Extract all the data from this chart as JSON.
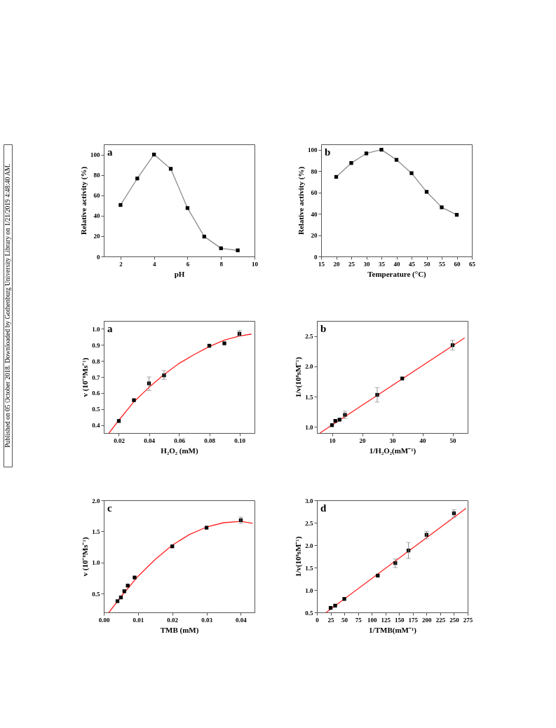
{
  "chart_data": [
    {
      "type": "line",
      "title": "a",
      "xlabel": "pH",
      "ylabel": "Relative activity (%)",
      "annotations": [
        "Published on 05 October 2018. Downloaded by Gothenburg University Library on 1/21/2019 4:48:40 AM."
      ],
      "xlim": [
        1,
        10
      ],
      "xticks": [
        2,
        4,
        6,
        8,
        10
      ],
      "ylim": [
        0,
        110
      ],
      "yticks": [
        0,
        20,
        40,
        60,
        80,
        100
      ],
      "grid": false,
      "marker": "square",
      "line_style": "solid",
      "series": [
        {
          "color": "#8c8c8c",
          "colors": [
            "#000000",
            "#000000",
            "#000000",
            "#000000",
            "#000000",
            "#000000",
            "#000000",
            "#000000"
          ],
          "x": [
            2,
            3,
            4,
            5,
            6,
            7,
            8,
            9
          ],
          "values": [
            50.5,
            76.5,
            100,
            86,
            47.5,
            19.5,
            8,
            6
          ]
        }
      ]
    },
    {
      "type": "line",
      "title": "b",
      "xlabel": "Temperature (°C)",
      "ylabel": "Relative activity (%)",
      "xlim": [
        15,
        65
      ],
      "xticks": [
        15,
        20,
        25,
        30,
        35,
        40,
        45,
        50,
        55,
        60,
        65
      ],
      "ylim": [
        0,
        105
      ],
      "yticks": [
        0,
        20,
        40,
        60,
        80,
        100
      ],
      "grid": false,
      "marker": "square",
      "line_style": "solid",
      "series": [
        {
          "color": "#8c8c8c",
          "colors": [
            "#000000",
            "#000000",
            "#000000",
            "#000000",
            "#000000",
            "#000000",
            "#000000",
            "#000000",
            "#000000"
          ],
          "x": [
            20,
            25,
            30,
            35,
            40,
            45,
            50,
            55,
            60
          ],
          "values": [
            74.5,
            87.5,
            96.5,
            100,
            90.5,
            78,
            60.5,
            46,
            39
          ]
        }
      ]
    },
    {
      "type": "scatter",
      "title": "a",
      "xlabel": "H₂O₂ (mM)",
      "ylabel": "v (10⁻⁸Ms⁻¹)",
      "xlim": [
        0.01,
        0.11
      ],
      "xticks": [
        0.02,
        0.04,
        0.06,
        0.08,
        {
          "value": 0.1,
          "label": "0.10"
        }
      ],
      "ylim": [
        0.35,
        1.05
      ],
      "yticks": [
        0.4,
        0.5,
        0.6,
        0.7,
        0.8,
        0.9,
        {
          "value": 1.0,
          "label": "1.0"
        }
      ],
      "grid": false,
      "marker": "square",
      "series": [
        {
          "type": "scatter",
          "color": "#000000",
          "x": [
            0.02,
            0.03,
            0.04,
            0.05,
            0.08,
            0.09,
            0.1
          ],
          "values": [
            0.425,
            0.555,
            0.66,
            0.71,
            0.895,
            0.91,
            0.97
          ],
          "errors": [
            null,
            null,
            [
              0.615,
              0.7
            ],
            [
              0.685,
              0.74
            ],
            null,
            null,
            [
              0.955,
              0.99
            ]
          ]
        },
        {
          "type": "line",
          "color": "#ff2020",
          "marker": "none",
          "line_style": "solid",
          "x": [
            0.0135,
            0.02,
            0.03,
            0.04,
            0.05,
            0.06,
            0.07,
            0.08,
            0.09,
            0.1,
            0.108
          ],
          "values": [
            0.35,
            0.43,
            0.545,
            0.635,
            0.715,
            0.785,
            0.84,
            0.89,
            0.93,
            0.955,
            0.968
          ]
        }
      ]
    },
    {
      "type": "scatter",
      "title": "b",
      "xlabel": "1/H₂O₂(mM⁻¹)",
      "ylabel": "1/v(10⁸sM⁻¹)",
      "xlim": [
        5,
        55
      ],
      "xticks": [
        10,
        20,
        30,
        40,
        50
      ],
      "ylim": [
        0.9,
        2.75
      ],
      "yticks": [
        {
          "value": 1.0,
          "label": "1.0"
        },
        1.5,
        {
          "value": 2.0,
          "label": "2.0"
        },
        2.5
      ],
      "grid": false,
      "marker": "square",
      "series": [
        {
          "type": "scatter",
          "color": "#000000",
          "x": [
            10,
            11.1,
            12.5,
            14.3,
            25,
            33.3,
            50
          ],
          "values": [
            1.03,
            1.1,
            1.12,
            1.2,
            1.53,
            1.8,
            2.35
          ],
          "errors": [
            null,
            null,
            null,
            [
              1.14,
              1.26
            ],
            [
              1.41,
              1.65
            ],
            null,
            [
              2.27,
              2.43
            ]
          ]
        },
        {
          "type": "line",
          "color": "#ff2020",
          "marker": "none",
          "line_style": "solid",
          "x": [
            6,
            54
          ],
          "values": [
            0.9,
            2.47
          ]
        }
      ]
    },
    {
      "type": "scatter",
      "title": "c",
      "xlabel": "TMB (mM)",
      "ylabel": "v (10⁻⁸Ms⁻¹)",
      "xlim": [
        0,
        0.044
      ],
      "xticks": [
        {
          "value": 0,
          "label": "0.00"
        },
        0.01,
        0.02,
        0.03,
        0.04
      ],
      "ylim": [
        0.2,
        2.0
      ],
      "yticks": [
        0.5,
        {
          "value": 1.0,
          "label": "1.0"
        },
        1.5,
        {
          "value": 2.0,
          "label": "2.0"
        }
      ],
      "grid": false,
      "marker": "square",
      "series": [
        {
          "type": "scatter",
          "color": "#000000",
          "x": [
            0.004,
            0.005,
            0.006,
            0.007,
            0.009,
            0.02,
            0.03,
            0.04
          ],
          "values": [
            0.38,
            0.44,
            0.54,
            0.63,
            0.76,
            1.26,
            1.56,
            1.68
          ],
          "errors": [
            null,
            null,
            null,
            null,
            null,
            null,
            null,
            [
              1.63,
              1.73
            ]
          ]
        },
        {
          "type": "line",
          "color": "#ff2020",
          "marker": "none",
          "line_style": "solid",
          "x": [
            0.0015,
            0.005,
            0.01,
            0.015,
            0.02,
            0.025,
            0.03,
            0.035,
            0.04,
            0.0435
          ],
          "values": [
            0.2,
            0.45,
            0.78,
            1.05,
            1.28,
            1.45,
            1.57,
            1.64,
            1.66,
            1.63
          ]
        }
      ]
    },
    {
      "type": "scatter",
      "title": "d",
      "xlabel": "1/TMB(mM⁻¹)",
      "ylabel": "1/v(10⁸sM⁻¹)",
      "xlim": [
        0,
        275
      ],
      "xticks": [
        0,
        25,
        50,
        75,
        100,
        125,
        150,
        175,
        200,
        225,
        250,
        275
      ],
      "ylim": [
        0.5,
        3.0
      ],
      "yticks": [
        0.5,
        {
          "value": 1.0,
          "label": "1.0"
        },
        1.5,
        {
          "value": 2.0,
          "label": "2.0"
        },
        2.5,
        {
          "value": 3.0,
          "label": "3.0"
        }
      ],
      "grid": false,
      "marker": "square",
      "series": [
        {
          "type": "scatter",
          "color": "#000000",
          "x": [
            25,
            33.3,
            50,
            111,
            143,
            167,
            200,
            250
          ],
          "values": [
            0.6,
            0.65,
            0.8,
            1.32,
            1.6,
            1.88,
            2.23,
            2.71
          ],
          "errors": [
            null,
            null,
            null,
            null,
            [
              1.5,
              1.69
            ],
            [
              1.7,
              2.06
            ],
            [
              2.14,
              2.31
            ],
            [
              2.62,
              2.79
            ]
          ]
        },
        {
          "type": "line",
          "color": "#ff2020",
          "marker": "none",
          "line_style": "solid",
          "x": [
            17,
            272
          ],
          "values": [
            0.5,
            2.82
          ]
        }
      ]
    }
  ]
}
